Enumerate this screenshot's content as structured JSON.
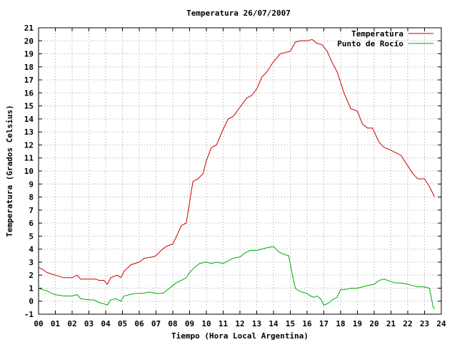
{
  "chart_data": {
    "type": "line",
    "title": "Temperatura 26/07/2007",
    "xlabel": "Tiempo (Hora Local Argentina)",
    "ylabel": "Temperatura (Grados Celsius)",
    "xlim": [
      0,
      24
    ],
    "ylim": [
      -1,
      21
    ],
    "x_ticks": [
      "00",
      "01",
      "02",
      "03",
      "04",
      "05",
      "06",
      "07",
      "08",
      "09",
      "10",
      "11",
      "12",
      "13",
      "14",
      "15",
      "16",
      "17",
      "18",
      "19",
      "20",
      "21",
      "22",
      "23",
      "24"
    ],
    "y_ticks": [
      "-1",
      "0",
      "1",
      "2",
      "3",
      "4",
      "5",
      "6",
      "7",
      "8",
      "9",
      "10",
      "11",
      "12",
      "13",
      "14",
      "15",
      "16",
      "17",
      "18",
      "19",
      "20",
      "21"
    ],
    "grid": true,
    "legend_position": "top-right",
    "series": [
      {
        "name": "Temperatura",
        "color": "#cc0000",
        "x": [
          0,
          0.3,
          0.5,
          1,
          1.5,
          2,
          2.3,
          2.5,
          3,
          3.4,
          3.6,
          3.9,
          4.1,
          4.3,
          4.7,
          4.9,
          5.1,
          5.5,
          6,
          6.3,
          6.8,
          7,
          7.3,
          7.6,
          8,
          8.3,
          8.5,
          8.8,
          9,
          9.2,
          9.5,
          9.8,
          10,
          10.3,
          10.6,
          11,
          11.3,
          11.6,
          12,
          12.4,
          12.7,
          13,
          13.3,
          13.6,
          14,
          14.4,
          14.7,
          15,
          15.3,
          15.6,
          16,
          16.3,
          16.6,
          16.9,
          17.2,
          17.5,
          17.8,
          18.2,
          18.6,
          19,
          19.3,
          19.6,
          19.9,
          20.3,
          20.6,
          21,
          21.3,
          21.6,
          22,
          22.3,
          22.6,
          23,
          23.3,
          23.6
        ],
        "y": [
          2.6,
          2.4,
          2.2,
          2.0,
          1.8,
          1.8,
          2.0,
          1.7,
          1.7,
          1.7,
          1.6,
          1.6,
          1.3,
          1.8,
          2.0,
          1.8,
          2.3,
          2.8,
          3.0,
          3.3,
          3.4,
          3.5,
          3.9,
          4.2,
          4.4,
          5.2,
          5.8,
          6.0,
          7.6,
          9.2,
          9.4,
          9.8,
          10.8,
          11.8,
          12.0,
          13.2,
          14.0,
          14.2,
          14.9,
          15.6,
          15.8,
          16.3,
          17.2,
          17.6,
          18.4,
          19.0,
          19.1,
          19.2,
          19.9,
          20.0,
          20.0,
          20.1,
          19.8,
          19.7,
          19.2,
          18.3,
          17.6,
          16.0,
          14.8,
          14.6,
          13.6,
          13.3,
          13.3,
          12.2,
          11.8,
          11.6,
          11.4,
          11.2,
          10.4,
          9.8,
          9.4,
          9.4,
          8.8,
          8.0
        ]
      },
      {
        "name": "Punto de Rocío",
        "color": "#00aa00",
        "x": [
          0,
          0.2,
          0.5,
          0.8,
          1,
          1.5,
          2,
          2.3,
          2.5,
          3,
          3.3,
          3.6,
          3.9,
          4.1,
          4.3,
          4.6,
          4.9,
          5.1,
          5.4,
          5.8,
          6.2,
          6.6,
          7,
          7.4,
          7.8,
          8,
          8.2,
          8.5,
          8.8,
          9,
          9.3,
          9.6,
          10,
          10.3,
          10.6,
          11,
          11.3,
          11.6,
          12,
          12.3,
          12.6,
          13,
          13.3,
          13.6,
          14,
          14.3,
          14.6,
          14.9,
          15.1,
          15.3,
          15.5,
          15.7,
          16,
          16.2,
          16.4,
          16.6,
          16.8,
          17,
          17.2,
          17.5,
          17.8,
          18,
          18.3,
          18.6,
          19,
          19.3,
          19.6,
          20,
          20.3,
          20.6,
          21,
          21.3,
          21.6,
          22,
          22.3,
          22.6,
          23,
          23.3,
          23.5,
          23.6
        ],
        "y": [
          1.0,
          0.9,
          0.8,
          0.6,
          0.5,
          0.4,
          0.4,
          0.5,
          0.2,
          0.1,
          0.1,
          -0.1,
          -0.2,
          -0.3,
          0.1,
          0.2,
          0.0,
          0.4,
          0.5,
          0.6,
          0.6,
          0.7,
          0.6,
          0.6,
          1.0,
          1.2,
          1.4,
          1.6,
          1.8,
          2.2,
          2.6,
          2.9,
          3.0,
          2.9,
          3.0,
          2.9,
          3.1,
          3.3,
          3.4,
          3.7,
          3.9,
          3.9,
          4.0,
          4.1,
          4.2,
          3.8,
          3.6,
          3.5,
          2.2,
          1.0,
          0.8,
          0.7,
          0.6,
          0.4,
          0.3,
          0.4,
          0.2,
          -0.3,
          -0.2,
          0.1,
          0.3,
          0.9,
          0.9,
          1.0,
          1.0,
          1.1,
          1.2,
          1.3,
          1.6,
          1.7,
          1.5,
          1.4,
          1.4,
          1.3,
          1.2,
          1.1,
          1.1,
          1.0,
          -0.4,
          -0.6
        ]
      }
    ]
  }
}
